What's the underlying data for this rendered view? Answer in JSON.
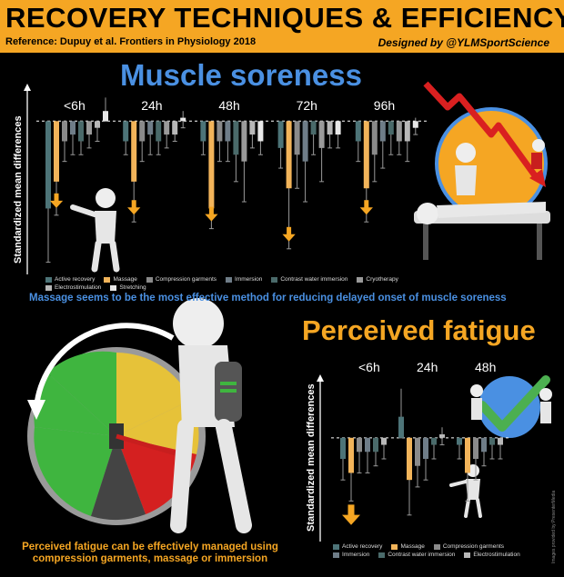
{
  "header": {
    "title": "RECOVERY TECHNIQUES & EFFICIENCY",
    "reference": "Reference: Dupuy et al. Frontiers in Physiology 2018",
    "designed_by": "Designed by @YLMSportScience"
  },
  "colors": {
    "header_bg": "#f5a623",
    "active_recovery": "#4d7478",
    "massage": "#f2b45a",
    "compression_garments": "#8a8a8a",
    "immersion": "#6f7d88",
    "contrast_water_immersion": "#4a6a6a",
    "cryotherapy": "#9a9a9a",
    "electrostimulation": "#b8b8b8",
    "stretching": "#e8e8e8",
    "title_blue": "#4a90e2",
    "title_orange": "#f5a623"
  },
  "muscle_soreness": {
    "title": "Muscle soreness",
    "ylabel": "Standardized mean differences",
    "caption": "Massage seems to be the most effective method for reducing delayed onset of muscle soreness",
    "legend": [
      "Active recovery",
      "Massage",
      "Compression garments",
      "Immersion",
      "Contrast water immersion",
      "Cryotherapy",
      "Electrostimulation",
      "Stretching"
    ]
  },
  "perceived_fatigue": {
    "title": "Perceived fatigue",
    "ylabel": "Standardized mean differences",
    "caption": "Perceived fatigue can be effectively managed using compression garments, massage or immersion",
    "legend": [
      "Active recovery",
      "Massage",
      "Compression garments",
      "Immersion",
      "Contrast water immersion",
      "Electrostimulation"
    ]
  },
  "credit": "Images provided by PresenterMedia",
  "chart_data": [
    {
      "type": "bar",
      "title": "Muscle soreness",
      "ylabel": "Standardized mean differences",
      "categories": [
        "<6h",
        "24h",
        "48h",
        "72h",
        "96h"
      ],
      "ylim": [
        -2.2,
        0.45
      ],
      "series": [
        {
          "name": "Active recovery",
          "color": "#4d7478",
          "values": [
            -1.3,
            -0.3,
            -0.3,
            -0.4,
            -0.3
          ],
          "ci": [
            [
              -2.1,
              -0.5
            ],
            [
              -0.5,
              -0.1
            ],
            [
              -0.5,
              -0.1
            ],
            [
              -0.7,
              -0.1
            ],
            [
              -0.6,
              0.0
            ]
          ]
        },
        {
          "name": "Massage",
          "color": "#f2b45a",
          "values": [
            -0.9,
            -0.9,
            -1.3,
            -1.0,
            -1.0
          ],
          "ci": [
            [
              -1.4,
              -0.2
            ],
            [
              -1.5,
              -0.3
            ],
            [
              -1.6,
              -0.6
            ],
            [
              -1.9,
              0.0
            ],
            [
              -1.5,
              -0.5
            ]
          ]
        },
        {
          "name": "Compression garments",
          "color": "#8a8a8a",
          "values": [
            -0.3,
            -0.3,
            -0.3,
            -0.5,
            -0.5
          ],
          "ci": [
            [
              -0.6,
              0.0
            ],
            [
              -0.6,
              0.0
            ],
            [
              -0.6,
              0.0
            ],
            [
              -1.0,
              0.0
            ],
            [
              -0.9,
              -0.1
            ]
          ]
        },
        {
          "name": "Immersion",
          "color": "#6f7d88",
          "values": [
            -0.2,
            -0.2,
            -0.3,
            -0.6,
            -0.3
          ],
          "ci": [
            [
              -0.5,
              0.0
            ],
            [
              -0.5,
              0.0
            ],
            [
              -0.6,
              0.0
            ],
            [
              -1.2,
              0.0
            ],
            [
              -0.7,
              0.0
            ]
          ]
        },
        {
          "name": "Contrast water immersion",
          "color": "#4a6a6a",
          "values": [
            -0.3,
            -0.3,
            -0.5,
            -0.2,
            -0.2
          ],
          "ci": [
            [
              -0.5,
              0.0
            ],
            [
              -0.5,
              0.0
            ],
            [
              -0.9,
              0.0
            ],
            [
              -0.5,
              0.0
            ],
            [
              -0.5,
              0.0
            ]
          ]
        },
        {
          "name": "Cryotherapy",
          "color": "#9a9a9a",
          "values": [
            -0.2,
            -0.2,
            -0.6,
            -0.4,
            -0.3
          ],
          "ci": [
            [
              -0.4,
              0.0
            ],
            [
              -0.4,
              0.0
            ],
            [
              -1.2,
              0.0
            ],
            [
              -0.9,
              0.0
            ],
            [
              -0.5,
              0.0
            ]
          ]
        },
        {
          "name": "Electrostimulation",
          "color": "#b8b8b8",
          "values": [
            -0.1,
            -0.2,
            -0.2,
            -0.2,
            -0.3
          ],
          "ci": [
            [
              -0.3,
              0.0
            ],
            [
              -0.3,
              0.0
            ],
            [
              -0.4,
              0.0
            ],
            [
              -0.4,
              0.0
            ],
            [
              -0.6,
              0.0
            ]
          ]
        },
        {
          "name": "Stretching",
          "color": "#e8e8e8",
          "values": [
            0.15,
            0.05,
            -0.3,
            -0.2,
            -0.1
          ],
          "ci": [
            [
              0.0,
              0.35
            ],
            [
              -0.1,
              0.15
            ],
            [
              -0.5,
              0.0
            ],
            [
              -0.4,
              0.0
            ],
            [
              -0.2,
              0.05
            ]
          ]
        }
      ]
    },
    {
      "type": "bar",
      "title": "Perceived fatigue",
      "ylabel": "Standardized mean differences",
      "categories": [
        "<6h",
        "24h",
        "48h"
      ],
      "ylim": [
        -1.4,
        0.8
      ],
      "series": [
        {
          "name": "Active recovery",
          "color": "#4d7478",
          "values": [
            -0.3,
            0.3,
            -0.1
          ],
          "ci": [
            [
              -0.6,
              0.0
            ],
            [
              0.0,
              0.7
            ],
            [
              -0.3,
              0.0
            ]
          ]
        },
        {
          "name": "Massage",
          "color": "#f2b45a",
          "values": [
            -0.5,
            -0.6,
            -0.5
          ],
          "ci": [
            [
              -0.9,
              0.0
            ],
            [
              -1.1,
              0.0
            ],
            [
              -0.9,
              0.0
            ]
          ]
        },
        {
          "name": "Compression garments",
          "color": "#8a8a8a",
          "values": [
            -0.2,
            -0.4,
            -0.3
          ],
          "ci": [
            [
              -0.5,
              0.0
            ],
            [
              -0.7,
              0.0
            ],
            [
              -0.6,
              0.0
            ]
          ]
        },
        {
          "name": "Immersion",
          "color": "#6f7d88",
          "values": [
            -0.2,
            -0.3,
            -0.2
          ],
          "ci": [
            [
              -0.5,
              0.0
            ],
            [
              -0.6,
              0.0
            ],
            [
              -0.4,
              0.0
            ]
          ]
        },
        {
          "name": "Contrast water immersion",
          "color": "#4a6a6a",
          "values": [
            -0.2,
            -0.1,
            -0.1
          ],
          "ci": [
            [
              -0.4,
              0.0
            ],
            [
              -0.3,
              0.0
            ],
            [
              -0.3,
              0.0
            ]
          ]
        },
        {
          "name": "Electrostimulation",
          "color": "#b8b8b8",
          "values": [
            -0.1,
            0.05,
            -0.1
          ],
          "ci": [
            [
              -0.3,
              0.0
            ],
            [
              -0.1,
              0.15
            ],
            [
              -0.3,
              0.0
            ]
          ]
        }
      ]
    }
  ]
}
